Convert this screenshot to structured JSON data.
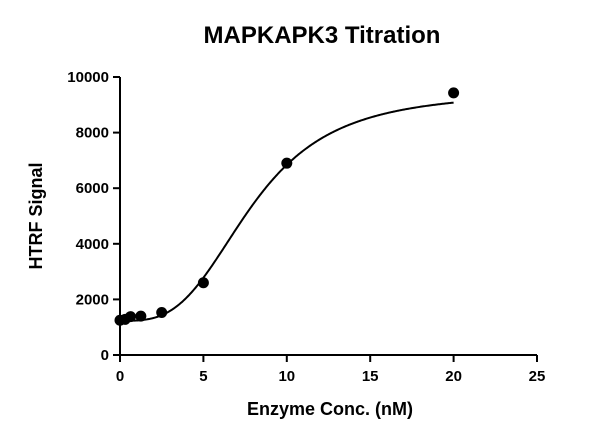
{
  "chart_data": {
    "type": "scatter",
    "title": "MAPKAPK3 Titration",
    "xlabel": "Enzyme Conc. (nM)",
    "ylabel": "HTRF Signal",
    "xlim": [
      0,
      25
    ],
    "ylim": [
      0,
      10000
    ],
    "xticks": [
      0,
      5,
      10,
      15,
      20,
      25
    ],
    "yticks": [
      0,
      2000,
      4000,
      6000,
      8000,
      10000
    ],
    "grid": false,
    "legend": "none",
    "series": [
      {
        "points": [
          {
            "x": 0,
            "y": 1250
          },
          {
            "x": 0.31,
            "y": 1280
          },
          {
            "x": 0.63,
            "y": 1380
          },
          {
            "x": 1.25,
            "y": 1400
          },
          {
            "x": 2.5,
            "y": 1530
          },
          {
            "x": 5,
            "y": 2600
          },
          {
            "x": 10,
            "y": 6900
          },
          {
            "x": 20,
            "y": 9430
          }
        ]
      }
    ],
    "fit_curve": {
      "type": "sigmoidal",
      "bottom": 1230,
      "top": 9480,
      "ec50": 7.9,
      "hill": 3.2
    }
  }
}
